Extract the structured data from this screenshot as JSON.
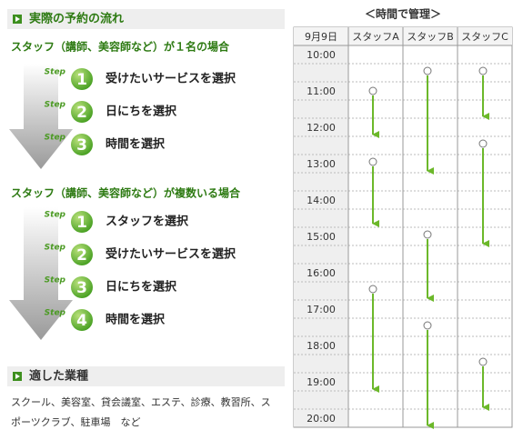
{
  "flow": {
    "title": "実際の予約の流れ",
    "cases": [
      {
        "title": "スタッフ（講師、美容師など）が１名の場合",
        "steps": [
          {
            "label": "Step",
            "number": "1",
            "text": "受けたいサービスを選択"
          },
          {
            "label": "Step",
            "number": "2",
            "text": "日にちを選択"
          },
          {
            "label": "Step",
            "number": "3",
            "text": "時間を選択"
          }
        ]
      },
      {
        "title": "スタッフ（講師、美容師など）が複数いる場合",
        "steps": [
          {
            "label": "Step",
            "number": "1",
            "text": "スタッフを選択"
          },
          {
            "label": "Step",
            "number": "2",
            "text": "受けたいサービスを選択"
          },
          {
            "label": "Step",
            "number": "3",
            "text": "日にちを選択"
          },
          {
            "label": "Step",
            "number": "4",
            "text": "時間を選択"
          }
        ]
      }
    ]
  },
  "industries": {
    "title": "適した業種",
    "lines": [
      "スクール、美容室、貸会議室、エステ、診療、教習所、ス",
      "ポーツクラブ、駐車場　など"
    ]
  },
  "schedule": {
    "title": "＜時間で管理＞",
    "header": [
      "9月9日",
      "スタッフA",
      "スタッフB",
      "スタッフC"
    ],
    "times": [
      "10:00",
      "11:00",
      "12:00",
      "13:00",
      "14:00",
      "15:00",
      "16:00",
      "17:00",
      "18:00",
      "19:00",
      "20:00"
    ]
  }
}
